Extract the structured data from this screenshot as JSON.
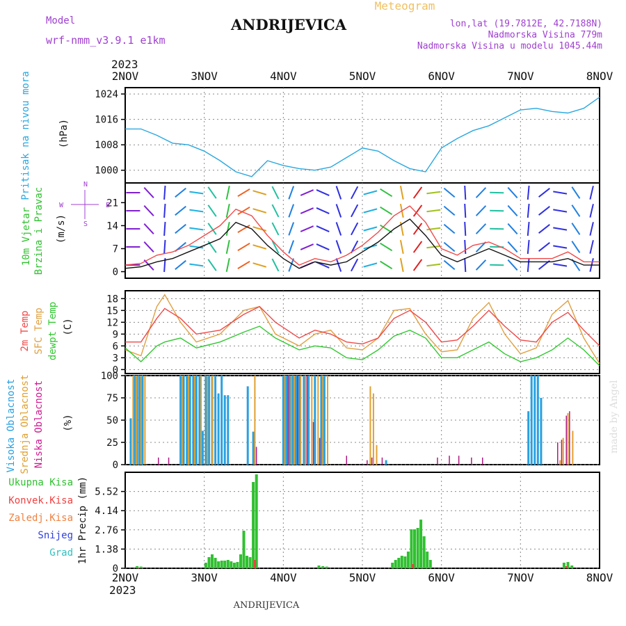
{
  "header": {
    "title": "ANDRIJEVICA",
    "meteogram_label": "Meteogram",
    "model_label": "Model",
    "model_name": "wrf-nmm_v3.9.1  e1km",
    "lonlat": "lon,lat (19.7812E, 42.7188N)",
    "elevation": "Nadmorska Visina 779m",
    "model_elevation": "Nadmorska Visina u modelu 1045.44m",
    "footer_title": "ANDRIJEVICA",
    "watermark": "made by Angel"
  },
  "chart_data": {
    "type": "line",
    "year": "2023",
    "x_axis": {
      "start": "2NOV",
      "end": "8NOV",
      "day_labels": [
        "2NOV",
        "3NOV",
        "4NOV",
        "5NOV",
        "6NOV",
        "7NOV",
        "8NOV"
      ],
      "year_label": "2023"
    },
    "colors": {
      "pressure": "#29a8e0",
      "temp2m": "#f04848",
      "sfc_temp": "#e0a040",
      "dewpt": "#30c830",
      "high_cloud": "#29a0e0",
      "mid_cloud": "#e0a030",
      "low_cloud": "#b01880",
      "total_precip": "#30c030",
      "convective": "#f04040",
      "frozen": "#f08040",
      "snow": "#3040e0",
      "graupel": "#30c0c0",
      "title": "#111111",
      "purple": "#a040d0",
      "orange_label": "#f0c060"
    },
    "panels": {
      "pressure": {
        "label_line1": "Pritisak na nivou mora",
        "unit": "(hPa)",
        "yticks": [
          "1000",
          "1008",
          "1016",
          "1024"
        ],
        "ylim": [
          996,
          1026
        ],
        "x": [
          0,
          0.2,
          0.4,
          0.6,
          0.8,
          1.0,
          1.2,
          1.4,
          1.6,
          1.8,
          2.0,
          2.2,
          2.4,
          2.6,
          2.8,
          3.0,
          3.2,
          3.4,
          3.6,
          3.8,
          4.0,
          4.2,
          4.4,
          4.6,
          4.8,
          5.0,
          5.2,
          5.4,
          5.6,
          5.8,
          6.0
        ],
        "values": [
          1013,
          1013,
          1011,
          1008.5,
          1008,
          1006,
          1003,
          999.5,
          998,
          1003,
          1001.5,
          1000.5,
          1000,
          1001,
          1004,
          1007,
          1006,
          1003,
          1000.5,
          999.5,
          1007,
          1010,
          1012.5,
          1014,
          1016.5,
          1019,
          1019.5,
          1018.5,
          1018,
          1019.5,
          1023
        ]
      },
      "wind": {
        "label_line1": "10m Vjetar",
        "label_line2": "Brzina i Pravac",
        "unit": "(m/s)",
        "compass_w": "W",
        "compass_e": "E",
        "compass_n": "N",
        "compass_s": "S",
        "yticks": [
          "0",
          "7",
          "14",
          "21"
        ],
        "ylim": [
          -2,
          27
        ],
        "x": [
          0,
          0.2,
          0.4,
          0.6,
          0.8,
          1.0,
          1.2,
          1.4,
          1.6,
          1.8,
          2.0,
          2.2,
          2.4,
          2.6,
          2.8,
          3.0,
          3.2,
          3.4,
          3.6,
          3.8,
          4.0,
          4.2,
          4.4,
          4.6,
          4.8,
          5.0,
          5.2,
          5.4,
          5.6,
          5.8,
          6.0
        ],
        "speed": [
          1,
          1.5,
          3,
          4,
          6,
          8,
          10,
          15,
          13,
          8,
          4,
          1,
          3,
          2,
          3,
          6,
          9,
          13,
          16,
          11,
          5,
          3,
          5,
          7,
          5,
          3,
          3,
          3,
          4,
          2,
          2
        ],
        "gust": [
          2,
          2.5,
          5,
          6,
          8,
          11,
          14,
          19,
          17,
          11,
          6,
          2,
          4,
          3,
          5,
          8,
          12,
          17,
          20,
          15,
          7,
          5,
          8,
          9,
          7,
          4,
          4,
          4,
          6,
          3,
          3
        ]
      },
      "temperature": {
        "label_2m": "2m Temp",
        "label_sfc": "SFC Temp",
        "label_dewpt": "dewpt Temp",
        "unit": "(C)",
        "yticks": [
          "0",
          "3",
          "6",
          "9",
          "12",
          "15",
          "18"
        ],
        "ylim": [
          -1,
          20
        ],
        "x": [
          0,
          0.2,
          0.4,
          0.5,
          0.7,
          0.9,
          1.2,
          1.5,
          1.7,
          1.9,
          2.2,
          2.4,
          2.6,
          2.8,
          3.0,
          3.2,
          3.4,
          3.6,
          3.8,
          4.0,
          4.2,
          4.4,
          4.6,
          4.8,
          5.0,
          5.2,
          5.4,
          5.6,
          5.8,
          6.0
        ],
        "temp2m": [
          7,
          7,
          13,
          15.5,
          13,
          9,
          10,
          14,
          16,
          12,
          8,
          10,
          9,
          7,
          6.5,
          8,
          13,
          15,
          12,
          7,
          7.5,
          11,
          15,
          11,
          7.5,
          7,
          12,
          14.5,
          10,
          6
        ],
        "sfc": [
          5,
          3.5,
          16,
          19,
          12,
          7,
          9,
          15,
          16,
          9,
          6,
          9,
          10,
          5.5,
          5,
          8,
          15,
          15.5,
          9,
          4.5,
          5,
          13,
          17,
          9,
          4,
          5.5,
          14,
          17.5,
          8,
          1.5
        ],
        "dewpt": [
          5.5,
          2,
          6,
          7,
          8,
          5.5,
          7,
          9.5,
          11,
          8,
          5,
          6,
          5.5,
          3,
          2.5,
          5,
          8.5,
          10,
          8,
          3,
          3,
          5,
          7,
          4,
          2,
          3,
          5,
          8,
          5,
          1
        ]
      },
      "clouds": {
        "label_high": "Visoka Oblacnost",
        "label_mid": "Srednja Oblacnost",
        "label_low": "Niska Oblacnost",
        "unit": "(%)",
        "yticks": [
          "0",
          "25",
          "50",
          "75",
          "100"
        ],
        "ylim": [
          0,
          100
        ],
        "high": [
          [
            0.07,
            52
          ],
          [
            0.12,
            100
          ],
          [
            0.15,
            100
          ],
          [
            0.18,
            100
          ],
          [
            0.22,
            100
          ],
          [
            0.7,
            100
          ],
          [
            0.74,
            100
          ],
          [
            0.78,
            100
          ],
          [
            0.82,
            100
          ],
          [
            0.86,
            100
          ],
          [
            0.9,
            100
          ],
          [
            0.94,
            100
          ],
          [
            0.98,
            38
          ],
          [
            1.02,
            100
          ],
          [
            1.06,
            100
          ],
          [
            1.1,
            100
          ],
          [
            1.14,
            100
          ],
          [
            1.18,
            80
          ],
          [
            1.22,
            100
          ],
          [
            1.26,
            78
          ],
          [
            1.3,
            78
          ],
          [
            1.55,
            88
          ],
          [
            1.62,
            37
          ],
          [
            2.0,
            100
          ],
          [
            2.04,
            100
          ],
          [
            2.08,
            100
          ],
          [
            2.12,
            100
          ],
          [
            2.16,
            100
          ],
          [
            2.2,
            100
          ],
          [
            2.26,
            100
          ],
          [
            2.32,
            100
          ],
          [
            2.4,
            100
          ],
          [
            2.48,
            100
          ],
          [
            2.52,
            100
          ],
          [
            3.3,
            5
          ],
          [
            5.1,
            60
          ],
          [
            5.14,
            100
          ],
          [
            5.18,
            100
          ],
          [
            5.22,
            100
          ],
          [
            5.26,
            75
          ]
        ],
        "mid": [
          [
            0.1,
            100
          ],
          [
            0.14,
            100
          ],
          [
            0.2,
            100
          ],
          [
            0.25,
            100
          ],
          [
            0.72,
            100
          ],
          [
            0.8,
            100
          ],
          [
            0.88,
            100
          ],
          [
            0.96,
            100
          ],
          [
            1.04,
            100
          ],
          [
            1.1,
            100
          ],
          [
            1.64,
            100
          ],
          [
            2.02,
            100
          ],
          [
            2.1,
            100
          ],
          [
            2.14,
            100
          ],
          [
            2.22,
            100
          ],
          [
            2.28,
            100
          ],
          [
            2.36,
            100
          ],
          [
            2.44,
            100
          ],
          [
            2.5,
            100
          ],
          [
            2.56,
            100
          ],
          [
            3.1,
            88
          ],
          [
            3.14,
            80
          ],
          [
            3.18,
            22
          ],
          [
            5.5,
            5
          ],
          [
            5.54,
            30
          ],
          [
            5.6,
            58
          ],
          [
            5.66,
            38
          ]
        ],
        "low": [
          [
            0.42,
            8
          ],
          [
            0.55,
            8
          ],
          [
            1.66,
            20
          ],
          [
            2.06,
            100
          ],
          [
            2.18,
            100
          ],
          [
            2.3,
            100
          ],
          [
            2.38,
            48
          ],
          [
            2.46,
            30
          ],
          [
            2.8,
            10
          ],
          [
            3.06,
            5
          ],
          [
            3.12,
            8
          ],
          [
            3.25,
            8
          ],
          [
            3.95,
            8
          ],
          [
            4.1,
            10
          ],
          [
            4.22,
            10
          ],
          [
            4.38,
            8
          ],
          [
            4.52,
            8
          ],
          [
            5.47,
            25
          ],
          [
            5.52,
            28
          ],
          [
            5.58,
            55
          ],
          [
            5.62,
            60
          ]
        ]
      },
      "precip": {
        "label_total": "Ukupna Kisa",
        "label_conv": "Konvek.Kisa",
        "label_frozen": "Zaledj.Kisa",
        "label_snow": "Snijeg",
        "label_graupel": "Grad",
        "unit": "1hr Precip (mm)",
        "yticks": [
          "0",
          "1.38",
          "2.76",
          "4.14",
          "5.52"
        ],
        "ylim": [
          0,
          6.9
        ],
        "total": [
          [
            0.15,
            0.15
          ],
          [
            0.2,
            0.12
          ],
          [
            1.02,
            0.4
          ],
          [
            1.06,
            0.8
          ],
          [
            1.1,
            1.0
          ],
          [
            1.14,
            0.75
          ],
          [
            1.18,
            0.5
          ],
          [
            1.22,
            0.55
          ],
          [
            1.26,
            0.55
          ],
          [
            1.3,
            0.6
          ],
          [
            1.34,
            0.5
          ],
          [
            1.38,
            0.4
          ],
          [
            1.42,
            0.45
          ],
          [
            1.46,
            1.0
          ],
          [
            1.5,
            2.7
          ],
          [
            1.54,
            0.9
          ],
          [
            1.58,
            0.8
          ],
          [
            1.62,
            6.2
          ],
          [
            1.66,
            6.75
          ],
          [
            2.45,
            0.2
          ],
          [
            2.5,
            0.15
          ],
          [
            2.55,
            0.12
          ],
          [
            3.38,
            0.4
          ],
          [
            3.42,
            0.6
          ],
          [
            3.46,
            0.75
          ],
          [
            3.5,
            0.9
          ],
          [
            3.54,
            0.85
          ],
          [
            3.58,
            1.2
          ],
          [
            3.62,
            2.8
          ],
          [
            3.66,
            2.8
          ],
          [
            3.7,
            2.9
          ],
          [
            3.74,
            3.5
          ],
          [
            3.78,
            2.3
          ],
          [
            3.82,
            1.2
          ],
          [
            3.86,
            0.6
          ],
          [
            5.55,
            0.4
          ],
          [
            5.6,
            0.45
          ],
          [
            5.65,
            0.2
          ]
        ],
        "convective": [
          [
            0.17,
            0.05
          ],
          [
            1.64,
            0.6
          ],
          [
            3.64,
            0.3
          ],
          [
            5.58,
            0.15
          ]
        ]
      }
    }
  }
}
